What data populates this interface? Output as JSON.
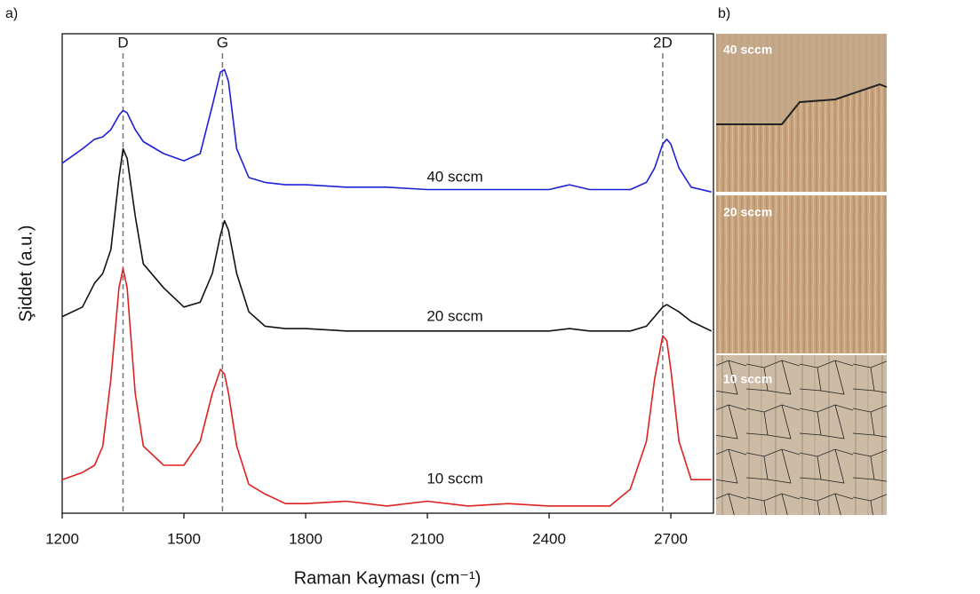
{
  "panel_labels": [
    "a)",
    "b)"
  ],
  "chart_data": {
    "type": "line",
    "x_label": "Raman Kayması (cm⁻¹)",
    "y_label": "Şiddet (a.u.)",
    "x": [
      1200,
      1250,
      1280,
      1300,
      1320,
      1340,
      1350,
      1360,
      1380,
      1400,
      1450,
      1500,
      1540,
      1570,
      1590,
      1600,
      1610,
      1630,
      1660,
      1700,
      1750,
      1800,
      1900,
      2000,
      2100,
      2200,
      2300,
      2400,
      2450,
      2500,
      2550,
      2600,
      2640,
      2660,
      2680,
      2690,
      2700,
      2720,
      2750,
      2800
    ],
    "xlim": [
      1200,
      2805
    ],
    "ylim": [
      0,
      100
    ],
    "xticks": [
      1200,
      1500,
      1800,
      2100,
      2400,
      2700
    ],
    "series": [
      {
        "name": "40 sccm",
        "color": "#1f1fd6",
        "values": [
          73,
          76,
          78,
          78.5,
          80,
          83,
          84,
          83.5,
          80,
          77.5,
          75,
          73.5,
          75,
          85,
          92,
          92.5,
          90,
          76,
          70,
          69,
          68.5,
          68.5,
          68,
          68,
          67.5,
          67.5,
          67.5,
          67.5,
          68.5,
          67.5,
          67.5,
          67.5,
          69,
          72,
          77,
          78,
          77,
          72,
          68,
          67
        ]
      },
      {
        "name": "20 sccm",
        "color": "#111111",
        "values": [
          41,
          43,
          48,
          50,
          55,
          70,
          76,
          74,
          62,
          52,
          47,
          43,
          44,
          50,
          58,
          61,
          59,
          50,
          42,
          39,
          38.5,
          38.5,
          38,
          38,
          38,
          38,
          38,
          38,
          38.5,
          38,
          38,
          38,
          39,
          41,
          43,
          43.5,
          43,
          42,
          40,
          38
        ]
      },
      {
        "name": "10 sccm",
        "color": "#e02020",
        "values": [
          7,
          8.5,
          10,
          14,
          28,
          47,
          51,
          47,
          25,
          14,
          10,
          10,
          15,
          25,
          30,
          29,
          25,
          14,
          6,
          4,
          2,
          2,
          2.5,
          1.5,
          2.5,
          1.5,
          2,
          1.5,
          1.5,
          1.5,
          1.5,
          5,
          15,
          28,
          37,
          36,
          30,
          15,
          7,
          7
        ]
      }
    ],
    "peaks": [
      {
        "label": "D",
        "x": 1350
      },
      {
        "label": "G",
        "x": 1595
      },
      {
        "label": "2D",
        "x": 2680
      }
    ]
  },
  "micrographs": [
    {
      "label": "40 sccm"
    },
    {
      "label": "20 sccm"
    },
    {
      "label": "10 sccm"
    }
  ]
}
